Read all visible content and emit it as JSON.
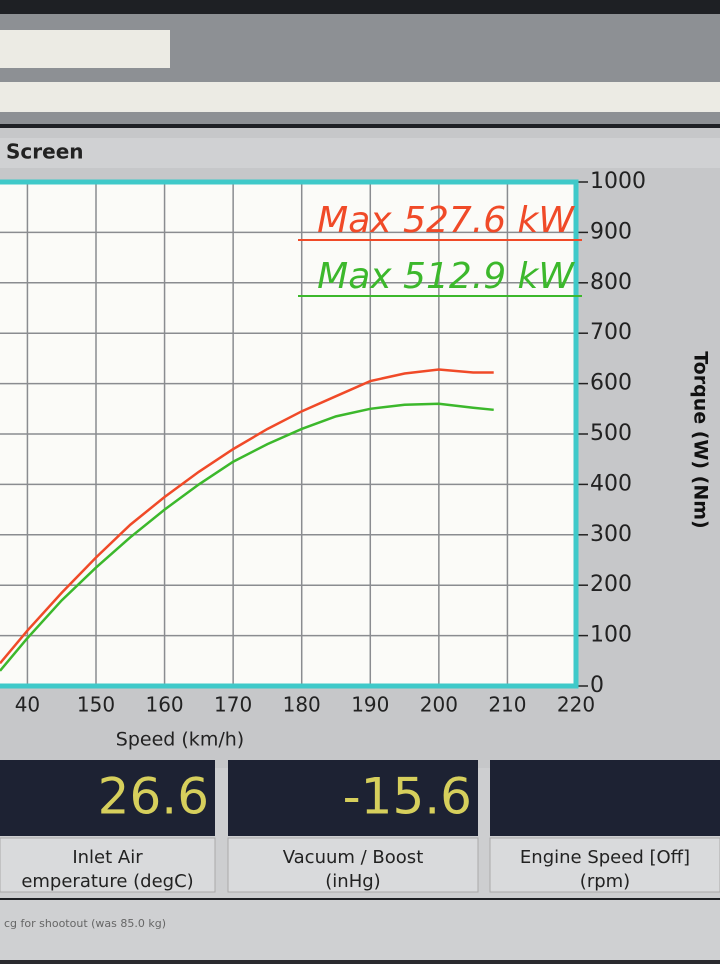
{
  "window": {
    "title": "Screen"
  },
  "chart_data": {
    "type": "line",
    "xlabel": "Speed (km/h)",
    "ylabel": "Torque (W) (Nm)",
    "x": [
      136,
      140,
      145,
      150,
      155,
      160,
      165,
      170,
      175,
      180,
      185,
      190,
      195,
      200,
      205,
      208
    ],
    "series": [
      {
        "name": "Max 527.6 kW",
        "color": "#f04a28",
        "values": [
          45,
          110,
          185,
          255,
          320,
          375,
          425,
          470,
          510,
          545,
          575,
          605,
          620,
          628,
          622,
          622
        ]
      },
      {
        "name": "Max 512.9 kW",
        "color": "#3cb82c",
        "values": [
          30,
          95,
          170,
          235,
          295,
          350,
          400,
          445,
          480,
          510,
          535,
          550,
          558,
          560,
          552,
          548
        ]
      }
    ],
    "xlim": [
      136,
      220
    ],
    "xticks": [
      {
        "value": 140,
        "label": "40"
      },
      150,
      160,
      170,
      180,
      190,
      200,
      210,
      220
    ],
    "ylim": [
      0,
      1000
    ],
    "yticks": [
      0,
      100,
      200,
      300,
      400,
      500,
      600,
      700,
      800,
      900,
      1000
    ],
    "grid": true
  },
  "gauges": [
    {
      "value": 26.6,
      "label": [
        "Inlet Air",
        "emperature (degC)"
      ]
    },
    {
      "value": -15.6,
      "label": [
        "Vacuum / Boost",
        "(inHg)"
      ]
    },
    {
      "label": [
        "Engine Speed [Off]",
        "(rpm)"
      ]
    }
  ],
  "footer": {
    "note": "cg for shootout (was 85.0 kg)"
  }
}
